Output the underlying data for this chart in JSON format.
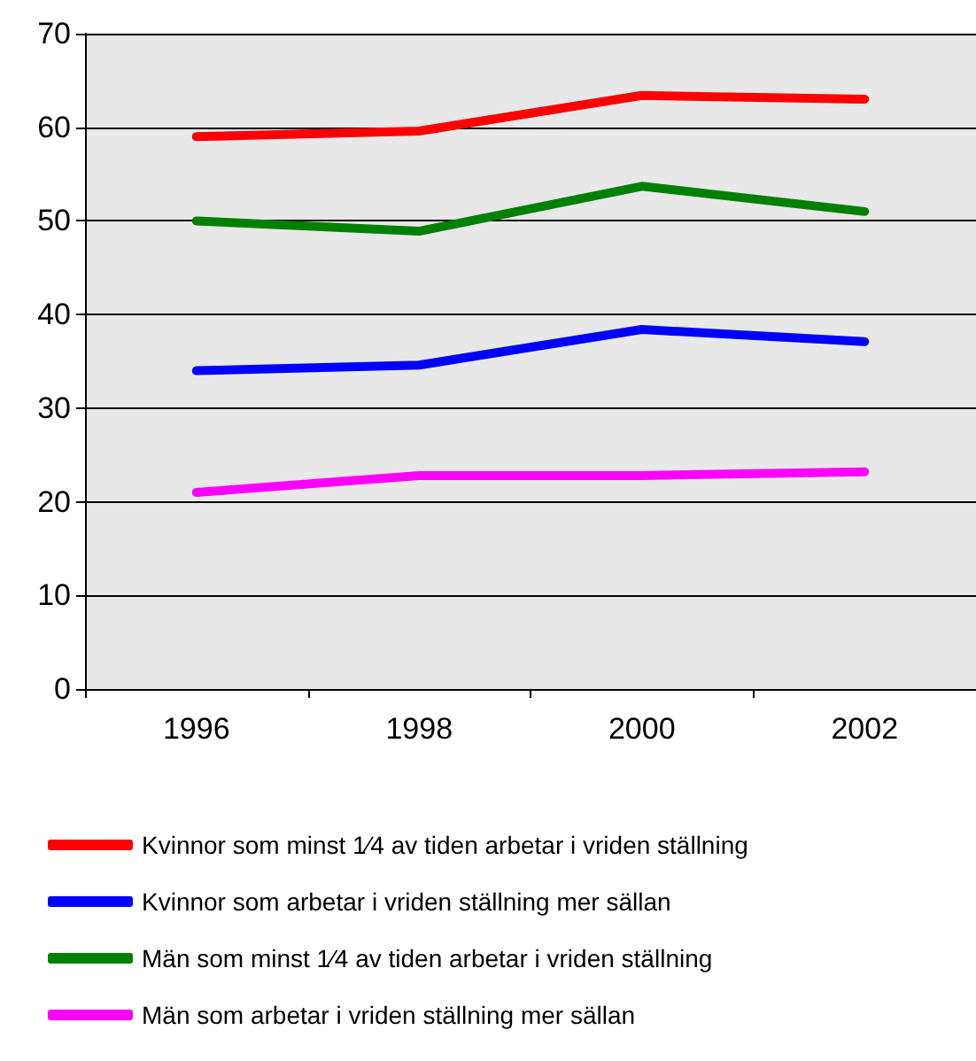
{
  "chart_data": {
    "type": "line",
    "categories": [
      "1996",
      "1998",
      "2000",
      "2002"
    ],
    "series": [
      {
        "name": "Kvinnor som minst 1⁄4 av tiden arbetar i vriden ställning",
        "color": "#ff0000",
        "values": [
          59,
          59.6,
          63.4,
          63
        ]
      },
      {
        "name": "Kvinnor som arbetar i vriden ställning mer sällan",
        "color": "#0000ff",
        "values": [
          34,
          34.6,
          38.4,
          37.1
        ]
      },
      {
        "name": "Män som minst 1⁄4 av tiden arbetar i vriden ställning",
        "color": "#008000",
        "values": [
          50,
          48.9,
          53.7,
          51
        ]
      },
      {
        "name": "Män som arbetar i vriden ställning mer sällan",
        "color": "#ff00ff",
        "values": [
          21,
          22.8,
          22.8,
          23.2
        ]
      }
    ],
    "ylim": [
      0,
      70
    ],
    "yticks": [
      0,
      10,
      20,
      30,
      40,
      50,
      60,
      70
    ],
    "grid": "y",
    "legend": "bottom",
    "marker": "none",
    "line_style": "solid"
  }
}
